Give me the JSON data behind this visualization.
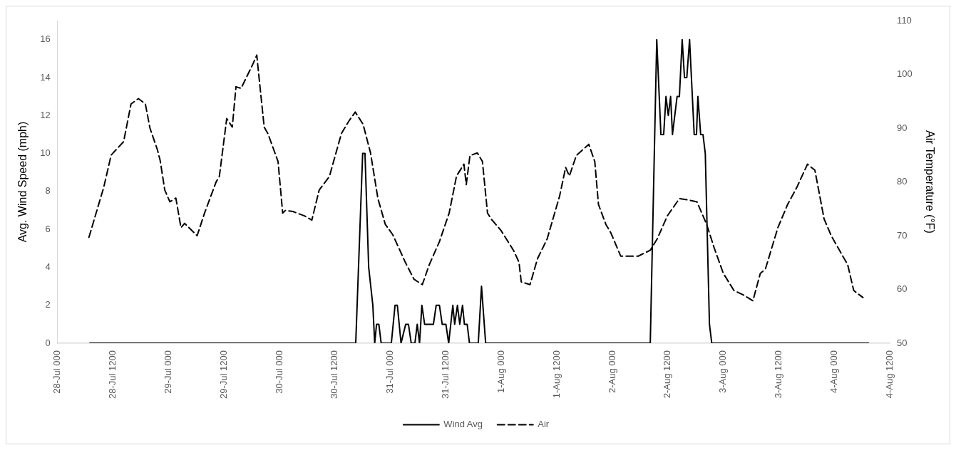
{
  "chart_data": {
    "type": "line",
    "ylabel": "Avg. Wind Speed (mph)",
    "y2label": "Air Temperature (°F)",
    "xlim": [
      "--07-28T00:00",
      "--08-04T12:00"
    ],
    "xticks": [
      {
        "value": "--07-28T00:00",
        "label": "28-Jul 000"
      },
      {
        "value": "--07-28T12:00",
        "label": "28-Jul 1200"
      },
      {
        "value": "--07-29T00:00",
        "label": "29-Jul 000"
      },
      {
        "value": "--07-29T12:00",
        "label": "29-Jul 1200"
      },
      {
        "value": "--07-30T00:00",
        "label": "30-Jul 000"
      },
      {
        "value": "--07-30T12:00",
        "label": "30-Jul 1200"
      },
      {
        "value": "--07-31T00:00",
        "label": "31-Jul 000"
      },
      {
        "value": "--07-31T12:00",
        "label": "31-Jul 1200"
      },
      {
        "value": "--08-01T00:00",
        "label": "1-Aug 000"
      },
      {
        "value": "--08-01T12:00",
        "label": "1-Aug 1200"
      },
      {
        "value": "--08-02T00:00",
        "label": "2-Aug 000"
      },
      {
        "value": "--08-02T12:00",
        "label": "2-Aug 1200"
      },
      {
        "value": "--08-03T00:00",
        "label": "3-Aug 000"
      },
      {
        "value": "--08-03T12:00",
        "label": "3-Aug 1200"
      },
      {
        "value": "--08-04T00:00",
        "label": "4-Aug 000"
      },
      {
        "value": "--08-04T12:00",
        "label": "4-Aug 1200"
      }
    ],
    "ylim": [
      0,
      17
    ],
    "yticks": [
      0,
      2,
      4,
      6,
      8,
      10,
      12,
      14,
      16
    ],
    "y2lim": [
      50,
      110
    ],
    "y2ticks": [
      50,
      60,
      70,
      80,
      90,
      100,
      110
    ],
    "grid": false,
    "legend": "bottom",
    "marker": "none",
    "series": [
      {
        "name": "Wind Avg",
        "color": "#000000",
        "line_style": "solid",
        "axis": "y",
        "x": [
          "--07-28T07:00",
          "--07-30T16:30",
          "--07-30T18:00",
          "--07-30T18:30",
          "--07-30T19:18",
          "--07-30T20:12",
          "--07-30T20:36",
          "--07-30T21:00",
          "--07-30T21:30",
          "--07-30T22:00",
          "--07-31T00:12",
          "--07-31T01:00",
          "--07-31T01:30",
          "--07-31T02:18",
          "--07-31T03:18",
          "--07-31T03:54",
          "--07-31T04:30",
          "--07-31T05:18",
          "--07-31T05:48",
          "--07-31T06:18",
          "--07-31T06:48",
          "--07-31T07:24",
          "--07-31T09:18",
          "--07-31T09:54",
          "--07-31T10:36",
          "--07-31T11:12",
          "--07-31T12:00",
          "--07-31T12:36",
          "--07-31T13:30",
          "--07-31T13:54",
          "--07-31T14:30",
          "--07-31T15:00",
          "--07-31T15:36",
          "--07-31T16:00",
          "--07-31T16:36",
          "--07-31T17:06",
          "--07-31T19:00",
          "--07-31T19:42",
          "--07-31T20:36",
          "--08-02T08:12",
          "--08-02T09:36",
          "--08-02T10:30",
          "--08-02T11:06",
          "--08-02T11:36",
          "--08-02T12:06",
          "--08-02T12:36",
          "--08-02T13:00",
          "--08-02T14:00",
          "--08-02T14:30",
          "--08-02T15:06",
          "--08-02T15:36",
          "--08-02T16:06",
          "--08-02T16:42",
          "--08-02T17:42",
          "--08-02T18:12",
          "--08-02T18:30",
          "--08-02T19:06",
          "--08-02T19:36",
          "--08-02T20:06",
          "--08-02T21:00",
          "--08-02T21:30",
          "--08-04T07:24"
        ],
        "values": [
          0,
          0,
          10,
          10,
          4,
          2,
          0,
          1,
          1,
          0,
          0,
          2,
          2,
          0,
          1,
          1,
          0,
          0,
          1,
          0,
          2,
          1,
          1,
          2,
          2,
          1,
          1,
          0,
          2,
          1,
          2,
          1,
          2,
          1,
          1,
          0,
          0,
          3,
          0,
          0,
          16,
          11,
          11,
          13,
          12,
          13,
          11,
          13,
          13,
          16,
          14,
          14,
          16,
          11,
          11,
          13,
          11,
          11,
          10,
          1,
          0,
          0
        ]
      },
      {
        "name": "Air",
        "color": "#000000",
        "line_style": "dashed",
        "axis": "y2",
        "x": [
          "--07-28T06:48",
          "--07-28T10:00",
          "--07-28T11:36",
          "--07-28T14:18",
          "--07-28T15:54",
          "--07-28T17:30",
          "--07-28T19:00",
          "--07-28T20:00",
          "--07-28T21:36",
          "--07-28T22:12",
          "--07-28T23:12",
          "--07-29T00:18",
          "--07-29T01:36",
          "--07-29T02:42",
          "--07-29T03:30",
          "--07-29T05:36",
          "--07-29T06:12",
          "--07-29T07:48",
          "--07-29T10:18",
          "--07-29T11:00",
          "--07-29T12:36",
          "--07-29T13:48",
          "--07-29T14:36",
          "--07-29T15:42",
          "--07-29T18:18",
          "--07-29T19:06",
          "--07-29T19:24",
          "--07-29T20:42",
          "--07-29T21:30",
          "--07-29T23:42",
          "--07-30T00:42",
          "--07-30T01:18",
          "--07-30T02:54",
          "--07-30T05:24",
          "--07-30T07:00",
          "--07-30T08:36",
          "--07-30T10:48",
          "--07-30T13:24",
          "--07-30T15:00",
          "--07-30T16:24",
          "--07-30T18:06",
          "--07-30T19:42",
          "--07-30T21:18",
          "--07-30T22:54",
          "--07-31T00:30",
          "--07-31T03:12",
          "--07-31T05:06",
          "--07-31T06:54",
          "--07-31T08:24",
          "--07-31T10:36",
          "--07-31T12:42",
          "--07-31T14:18",
          "--07-31T15:54",
          "--07-31T16:24",
          "--07-31T17:12",
          "--07-31T18:48",
          "--07-31T19:54",
          "--07-31T21:00",
          "--07-31T21:48",
          "--07-31T23:54",
          "--08-01T02:36",
          "--08-01T03:48",
          "--08-01T04:18",
          "--08-01T06:12",
          "--08-01T07:48",
          "--08-01T09:54",
          "--08-01T12:36",
          "--08-01T13:54",
          "--08-01T14:42",
          "--08-01T16:12",
          "--08-01T18:54",
          "--08-01T20:12",
          "--08-01T21:00",
          "--08-01T22:36",
          "--08-01T23:42",
          "--08-02T01:48",
          "--08-02T05:36",
          "--08-02T08:12",
          "--08-02T09:42",
          "--08-02T11:54",
          "--08-02T14:30",
          "--08-02T16:42",
          "--08-02T18:18",
          "--08-02T20:24",
          "--08-02T22:00",
          "--08-03T00:00",
          "--08-03T02:18",
          "--08-03T04:18",
          "--08-03T06:24",
          "--08-03T08:00",
          "--08-03T09:06",
          "--08-03T11:48",
          "--08-03T13:54",
          "--08-03T15:54",
          "--08-03T18:12",
          "--08-03T19:48",
          "--08-03T21:48",
          "--08-03T23:24",
          "--08-04T01:30",
          "--08-04T02:54",
          "--08-04T04:12",
          "--08-04T06:12"
        ],
        "values": [
          69.7,
          79,
          85,
          87.5,
          94.5,
          95.5,
          94.5,
          90,
          86,
          84,
          78.5,
          76.3,
          77,
          71.5,
          72.3,
          70.5,
          70,
          74.2,
          80,
          81,
          91.8,
          90.2,
          97.7,
          97.4,
          102,
          103.6,
          101,
          90.2,
          89,
          83.8,
          74.2,
          74.7,
          74.5,
          73.7,
          72.9,
          78.5,
          81,
          89,
          91.3,
          93,
          90.7,
          85.4,
          76.9,
          72.1,
          70.2,
          65.1,
          61.9,
          60.9,
          64.6,
          68.9,
          74.2,
          81.1,
          83.3,
          79.5,
          84.9,
          85.4,
          83.8,
          74.2,
          73.1,
          71,
          67.3,
          65.1,
          61.4,
          60.9,
          65.7,
          69.4,
          77.4,
          82.7,
          81.1,
          84.9,
          87,
          83.8,
          75.8,
          72.1,
          70.5,
          66.2,
          66.2,
          67.3,
          69.4,
          73.7,
          76.9,
          76.6,
          76.3,
          72.1,
          67.8,
          63,
          59.8,
          59,
          57.9,
          63,
          63.8,
          71.5,
          75.8,
          79,
          83.3,
          82.2,
          73.1,
          69.9,
          66.7,
          64.6,
          59.8,
          58.5
        ]
      }
    ]
  }
}
